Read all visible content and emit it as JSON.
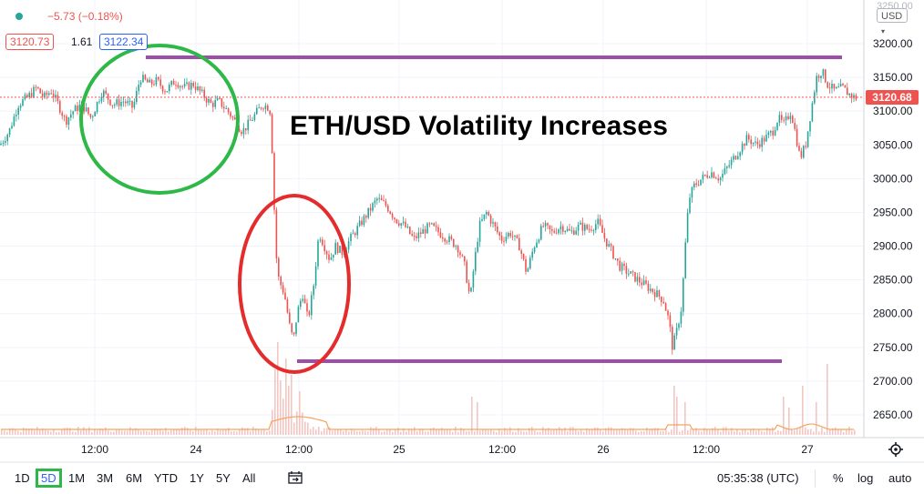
{
  "header": {
    "change": "−5.73 (−0.18%)",
    "bid": "3120.73",
    "spread": "1.61",
    "ask": "3122.34"
  },
  "currency_selector": "USD",
  "last_price_label": "3120.68",
  "annotation_title": "ETH/USD Volatility Increases",
  "toolbar": {
    "timeframes": [
      "1D",
      "5D",
      "1M",
      "3M",
      "6M",
      "YTD",
      "1Y",
      "5Y",
      "All"
    ],
    "selected_timeframe": "5D",
    "clock": "05:35:38 (UTC)",
    "percent_label": "%",
    "log_label": "log",
    "auto_label": "auto"
  },
  "colors": {
    "up": "#26a69a",
    "down": "#ef5350",
    "volume": "#f2c6c3",
    "volume_ma": "#f4a460",
    "level_line": "#9c4ea8",
    "green_circle": "#2eb847",
    "red_circle": "#e52c2c",
    "last_price": "#ef5350"
  },
  "chart_data": {
    "type": "candlestick",
    "title": "ETH/USD Volatility Increases",
    "y_ticks": [
      "3200.00",
      "3150.00",
      "3100.00",
      "3050.00",
      "3000.00",
      "2950.00",
      "2900.00",
      "2850.00",
      "2800.00",
      "2750.00",
      "2700.00",
      "2650.00"
    ],
    "x_ticks": [
      "12:00",
      "24",
      "12:00",
      "25",
      "12:00",
      "26",
      "12:00",
      "27"
    ],
    "ylim": [
      2630,
      3250
    ],
    "last_price": 3120.68,
    "resistance_level": 3180,
    "support_level": 2730,
    "price_path": [
      [
        0,
        3050
      ],
      [
        10,
        3070
      ],
      [
        20,
        3110
      ],
      [
        30,
        3120
      ],
      [
        40,
        3135
      ],
      [
        48,
        3120
      ],
      [
        56,
        3130
      ],
      [
        64,
        3110
      ],
      [
        72,
        3085
      ],
      [
        80,
        3100
      ],
      [
        90,
        3110
      ],
      [
        100,
        3090
      ],
      [
        112,
        3130
      ],
      [
        124,
        3110
      ],
      [
        136,
        3115
      ],
      [
        146,
        3105
      ],
      [
        154,
        3150
      ],
      [
        164,
        3140
      ],
      [
        172,
        3145
      ],
      [
        182,
        3130
      ],
      [
        192,
        3145
      ],
      [
        202,
        3135
      ],
      [
        212,
        3140
      ],
      [
        222,
        3125
      ],
      [
        232,
        3110
      ],
      [
        240,
        3115
      ],
      [
        250,
        3100
      ],
      [
        258,
        3085
      ],
      [
        266,
        3070
      ],
      [
        272,
        3080
      ],
      [
        280,
        3095
      ],
      [
        288,
        3110
      ],
      [
        296,
        3105
      ],
      [
        300,
        3010
      ],
      [
        302,
        2900
      ],
      [
        306,
        2850
      ],
      [
        312,
        2830
      ],
      [
        318,
        2780
      ],
      [
        322,
        2760
      ],
      [
        326,
        2800
      ],
      [
        332,
        2830
      ],
      [
        338,
        2790
      ],
      [
        344,
        2840
      ],
      [
        350,
        2920
      ],
      [
        356,
        2900
      ],
      [
        362,
        2880
      ],
      [
        368,
        2900
      ],
      [
        376,
        2890
      ],
      [
        384,
        2910
      ],
      [
        394,
        2930
      ],
      [
        404,
        2950
      ],
      [
        414,
        2970
      ],
      [
        424,
        2960
      ],
      [
        434,
        2940
      ],
      [
        444,
        2930
      ],
      [
        454,
        2910
      ],
      [
        462,
        2920
      ],
      [
        472,
        2930
      ],
      [
        482,
        2920
      ],
      [
        492,
        2910
      ],
      [
        502,
        2900
      ],
      [
        510,
        2870
      ],
      [
        516,
        2820
      ],
      [
        520,
        2870
      ],
      [
        526,
        2930
      ],
      [
        534,
        2950
      ],
      [
        542,
        2930
      ],
      [
        550,
        2910
      ],
      [
        560,
        2920
      ],
      [
        570,
        2900
      ],
      [
        578,
        2860
      ],
      [
        586,
        2900
      ],
      [
        596,
        2930
      ],
      [
        606,
        2920
      ],
      [
        616,
        2930
      ],
      [
        626,
        2920
      ],
      [
        636,
        2930
      ],
      [
        646,
        2925
      ],
      [
        656,
        2935
      ],
      [
        664,
        2910
      ],
      [
        672,
        2890
      ],
      [
        680,
        2870
      ],
      [
        690,
        2860
      ],
      [
        700,
        2850
      ],
      [
        710,
        2840
      ],
      [
        720,
        2830
      ],
      [
        728,
        2820
      ],
      [
        734,
        2790
      ],
      [
        738,
        2750
      ],
      [
        742,
        2770
      ],
      [
        748,
        2810
      ],
      [
        752,
        2900
      ],
      [
        756,
        2970
      ],
      [
        762,
        2990
      ],
      [
        770,
        3000
      ],
      [
        780,
        3010
      ],
      [
        790,
        3000
      ],
      [
        800,
        3020
      ],
      [
        810,
        3040
      ],
      [
        820,
        3060
      ],
      [
        830,
        3050
      ],
      [
        840,
        3060
      ],
      [
        848,
        3070
      ],
      [
        854,
        3090
      ],
      [
        860,
        3080
      ],
      [
        868,
        3100
      ],
      [
        874,
        3060
      ],
      [
        878,
        3030
      ],
      [
        884,
        3050
      ],
      [
        890,
        3100
      ],
      [
        896,
        3150
      ],
      [
        902,
        3160
      ],
      [
        908,
        3140
      ],
      [
        916,
        3130
      ],
      [
        924,
        3135
      ],
      [
        932,
        3125
      ],
      [
        938,
        3120
      ]
    ],
    "volume_spikes": [
      [
        300,
        0.6
      ],
      [
        304,
        0.85
      ],
      [
        308,
        0.5
      ],
      [
        312,
        0.7
      ],
      [
        316,
        0.45
      ],
      [
        320,
        0.55
      ],
      [
        328,
        0.4
      ],
      [
        516,
        0.35
      ],
      [
        524,
        0.3
      ],
      [
        738,
        0.45
      ],
      [
        742,
        0.35
      ],
      [
        750,
        0.3
      ],
      [
        860,
        0.35
      ],
      [
        866,
        0.25
      ],
      [
        880,
        0.45
      ],
      [
        896,
        0.3
      ],
      [
        906,
        0.65
      ]
    ]
  }
}
